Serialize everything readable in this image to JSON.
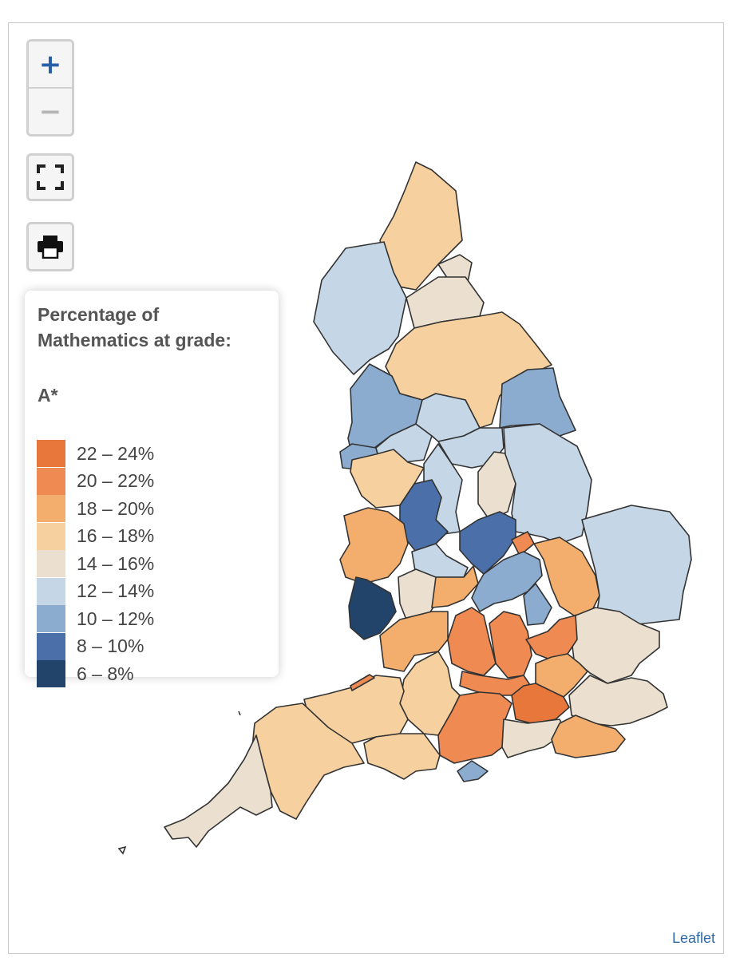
{
  "legend": {
    "title": "Percentage of Mathematics at grade:",
    "grade": "A*",
    "classes": [
      {
        "label": "22 – 24%",
        "color": "#e8773c"
      },
      {
        "label": "20 – 22%",
        "color": "#ee8a52"
      },
      {
        "label": "18 – 20%",
        "color": "#f3ae6d"
      },
      {
        "label": "16 – 18%",
        "color": "#f6d09e"
      },
      {
        "label": "14 – 16%",
        "color": "#ebe0cf"
      },
      {
        "label": "12 – 14%",
        "color": "#c5d6e6"
      },
      {
        "label": "10 – 12%",
        "color": "#8babcf"
      },
      {
        "label": "8 – 10%",
        "color": "#4b6fa9"
      },
      {
        "label": "6 – 8%",
        "color": "#22446b"
      }
    ]
  },
  "controls": {
    "zoom_in": "+",
    "zoom_out": "−",
    "fullscreen_icon": "fullscreen-icon",
    "print_icon": "printer-icon"
  },
  "attribution": "Leaflet"
}
